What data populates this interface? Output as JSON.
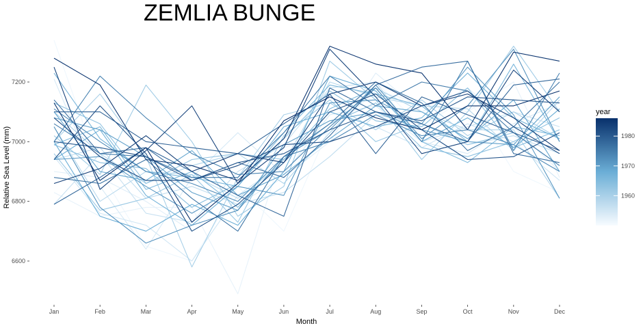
{
  "chart_data": {
    "type": "line",
    "title": "ZEMLIA BUNGE",
    "xlabel": "Month",
    "ylabel": "Relative Sea Level (mm)",
    "categories": [
      "Jan",
      "Feb",
      "Mar",
      "Apr",
      "May",
      "Jun",
      "Jul",
      "Aug",
      "Sep",
      "Oct",
      "Nov",
      "Dec"
    ],
    "y_ticks": [
      "6600",
      "6800",
      "7000",
      "7200"
    ],
    "ylim": [
      6480,
      7380
    ],
    "grid": false,
    "legend": {
      "title": "year",
      "position": "right",
      "type": "colorbar",
      "range": [
        1950,
        1986
      ],
      "ticks": [
        "1960",
        "1970",
        "1980"
      ],
      "color_low": "#f7fbff",
      "color_high": "#08306b"
    },
    "series": [
      {
        "year": 1951,
        "values": [
          7340,
          6900,
          6650,
          6600,
          6850,
          6700,
          7050,
          7200,
          7050,
          7150,
          6900,
          6830
        ]
      },
      {
        "year": 1952,
        "values": [
          6830,
          6750,
          6780,
          6780,
          6490,
          6980,
          7030,
          7170,
          7130,
          7100,
          7200,
          6880
        ]
      },
      {
        "year": 1953,
        "values": [
          6900,
          6880,
          6800,
          6700,
          6790,
          6880,
          7000,
          7230,
          7100,
          7180,
          7050,
          6900
        ]
      },
      {
        "year": 1954,
        "values": [
          7210,
          6850,
          6640,
          6880,
          7030,
          6890,
          7090,
          7120,
          7000,
          6960,
          7060,
          7130
        ]
      },
      {
        "year": 1955,
        "values": [
          6950,
          6760,
          6720,
          6600,
          6820,
          6930,
          7100,
          7050,
          6980,
          7060,
          7000,
          6870
        ]
      },
      {
        "year": 1956,
        "values": [
          6790,
          6960,
          6760,
          6730,
          6900,
          6990,
          7180,
          7200,
          7000,
          7050,
          7100,
          7050
        ]
      },
      {
        "year": 1957,
        "values": [
          6940,
          6980,
          6810,
          6850,
          6790,
          6830,
          6950,
          7090,
          7060,
          6990,
          7020,
          6960
        ]
      },
      {
        "year": 1958,
        "values": [
          7050,
          6800,
          6900,
          6890,
          6810,
          6930,
          7200,
          7150,
          7120,
          7110,
          6970,
          7140
        ]
      },
      {
        "year": 1959,
        "values": [
          7100,
          6960,
          6860,
          6920,
          6960,
          6860,
          7030,
          7180,
          7100,
          7040,
          7040,
          6810
        ]
      },
      {
        "year": 1960,
        "values": [
          7000,
          7160,
          6950,
          6580,
          6880,
          7090,
          7130,
          7040,
          7140,
          7020,
          7100,
          7010
        ]
      },
      {
        "year": 1961,
        "values": [
          7020,
          6890,
          7190,
          7000,
          6750,
          6850,
          7270,
          7140,
          6940,
          7100,
          7320,
          7100
        ]
      },
      {
        "year": 1962,
        "values": [
          6960,
          6770,
          6810,
          6890,
          6730,
          7020,
          7140,
          7000,
          7060,
          6990,
          7030,
          6920
        ]
      },
      {
        "year": 1963,
        "values": [
          7130,
          7060,
          6860,
          6940,
          6960,
          6940,
          7060,
          7130,
          6980,
          6950,
          7000,
          7080
        ]
      },
      {
        "year": 1964,
        "values": [
          6990,
          6930,
          6910,
          6780,
          6860,
          7010,
          7170,
          7070,
          7050,
          7180,
          6980,
          7040
        ]
      },
      {
        "year": 1965,
        "values": [
          6990,
          7050,
          6840,
          6900,
          6780,
          6940,
          7110,
          7180,
          7000,
          6930,
          7050,
          7020
        ]
      },
      {
        "year": 1966,
        "values": [
          7230,
          7010,
          6900,
          6880,
          6850,
          7030,
          7190,
          7160,
          7120,
          7000,
          7260,
          7000
        ]
      },
      {
        "year": 1967,
        "values": [
          6940,
          7040,
          6820,
          6720,
          6850,
          7050,
          7100,
          7050,
          7080,
          7230,
          7080,
          7010
        ]
      },
      {
        "year": 1968,
        "values": [
          7000,
          6750,
          6700,
          6790,
          6720,
          6900,
          7220,
          7170,
          7000,
          7080,
          6980,
          7110
        ]
      },
      {
        "year": 1969,
        "values": [
          7100,
          6900,
          6870,
          6970,
          6820,
          6890,
          7010,
          7120,
          7100,
          7010,
          7140,
          6900
        ]
      },
      {
        "year": 1970,
        "values": [
          7080,
          7040,
          6950,
          6830,
          6770,
          6990,
          7070,
          7100,
          7040,
          7000,
          6990,
          7150
        ]
      },
      {
        "year": 1971,
        "values": [
          6940,
          6950,
          6850,
          6760,
          6850,
          6820,
          7130,
          7140,
          7060,
          7250,
          7090,
          6810
        ]
      },
      {
        "year": 1972,
        "values": [
          7050,
          6780,
          6660,
          6720,
          6770,
          6950,
          7040,
          7190,
          7010,
          7120,
          7310,
          7000
        ]
      },
      {
        "year": 1973,
        "values": [
          7110,
          7000,
          6900,
          6860,
          6800,
          6950,
          7000,
          7090,
          7020,
          7040,
          6990,
          6900
        ]
      },
      {
        "year": 1974,
        "values": [
          7000,
          7220,
          7080,
          6960,
          6890,
          6900,
          7050,
          7180,
          7000,
          7270,
          6970,
          7230
        ]
      },
      {
        "year": 1975,
        "values": [
          7060,
          6960,
          6950,
          6880,
          6880,
          7030,
          7220,
          7120,
          7200,
          7170,
          7030,
          6920
        ]
      },
      {
        "year": 1976,
        "values": [
          6880,
          6860,
          6940,
          6810,
          6700,
          6950,
          7060,
          7200,
          7130,
          6970,
          7050,
          7200
        ]
      },
      {
        "year": 1977,
        "values": [
          7140,
          6960,
          6980,
          6870,
          6930,
          6880,
          7020,
          7190,
          7250,
          7270,
          6960,
          6930
        ]
      },
      {
        "year": 1978,
        "values": [
          6790,
          6880,
          6980,
          6900,
          6820,
          6750,
          7180,
          7100,
          7060,
          7000,
          7190,
          7210
        ]
      },
      {
        "year": 1979,
        "values": [
          7100,
          7100,
          7000,
          6980,
          6960,
          7060,
          7160,
          6960,
          7150,
          7090,
          7030,
          6970
        ]
      },
      {
        "year": 1980,
        "values": [
          7000,
          6980,
          6950,
          6870,
          6930,
          6960,
          7040,
          7100,
          7070,
          7150,
          7140,
          7130
        ]
      },
      {
        "year": 1981,
        "values": [
          6940,
          7120,
          6960,
          6700,
          6790,
          6930,
          7100,
          7160,
          7040,
          6940,
          6950,
          7030
        ]
      },
      {
        "year": 1982,
        "values": [
          7080,
          6950,
          6870,
          6870,
          6920,
          6990,
          7000,
          7050,
          7120,
          7170,
          7050,
          6960
        ]
      },
      {
        "year": 1983,
        "values": [
          7250,
          6840,
          6970,
          7120,
          6860,
          6980,
          7310,
          7150,
          6960,
          7000,
          7240,
          7100
        ]
      },
      {
        "year": 1984,
        "values": [
          6860,
          6910,
          7020,
          6900,
          6960,
          6930,
          7160,
          7200,
          7120,
          7160,
          7080,
          6970
        ]
      },
      {
        "year": 1985,
        "values": [
          7280,
          7190,
          6940,
          6920,
          6870,
          7010,
          7320,
          7260,
          7230,
          7040,
          7300,
          7270
        ]
      },
      {
        "year": 1986,
        "values": [
          7130,
          6870,
          6980,
          6730,
          6860,
          7070,
          7150,
          7080,
          7040,
          7120,
          7120,
          7170
        ]
      }
    ]
  }
}
